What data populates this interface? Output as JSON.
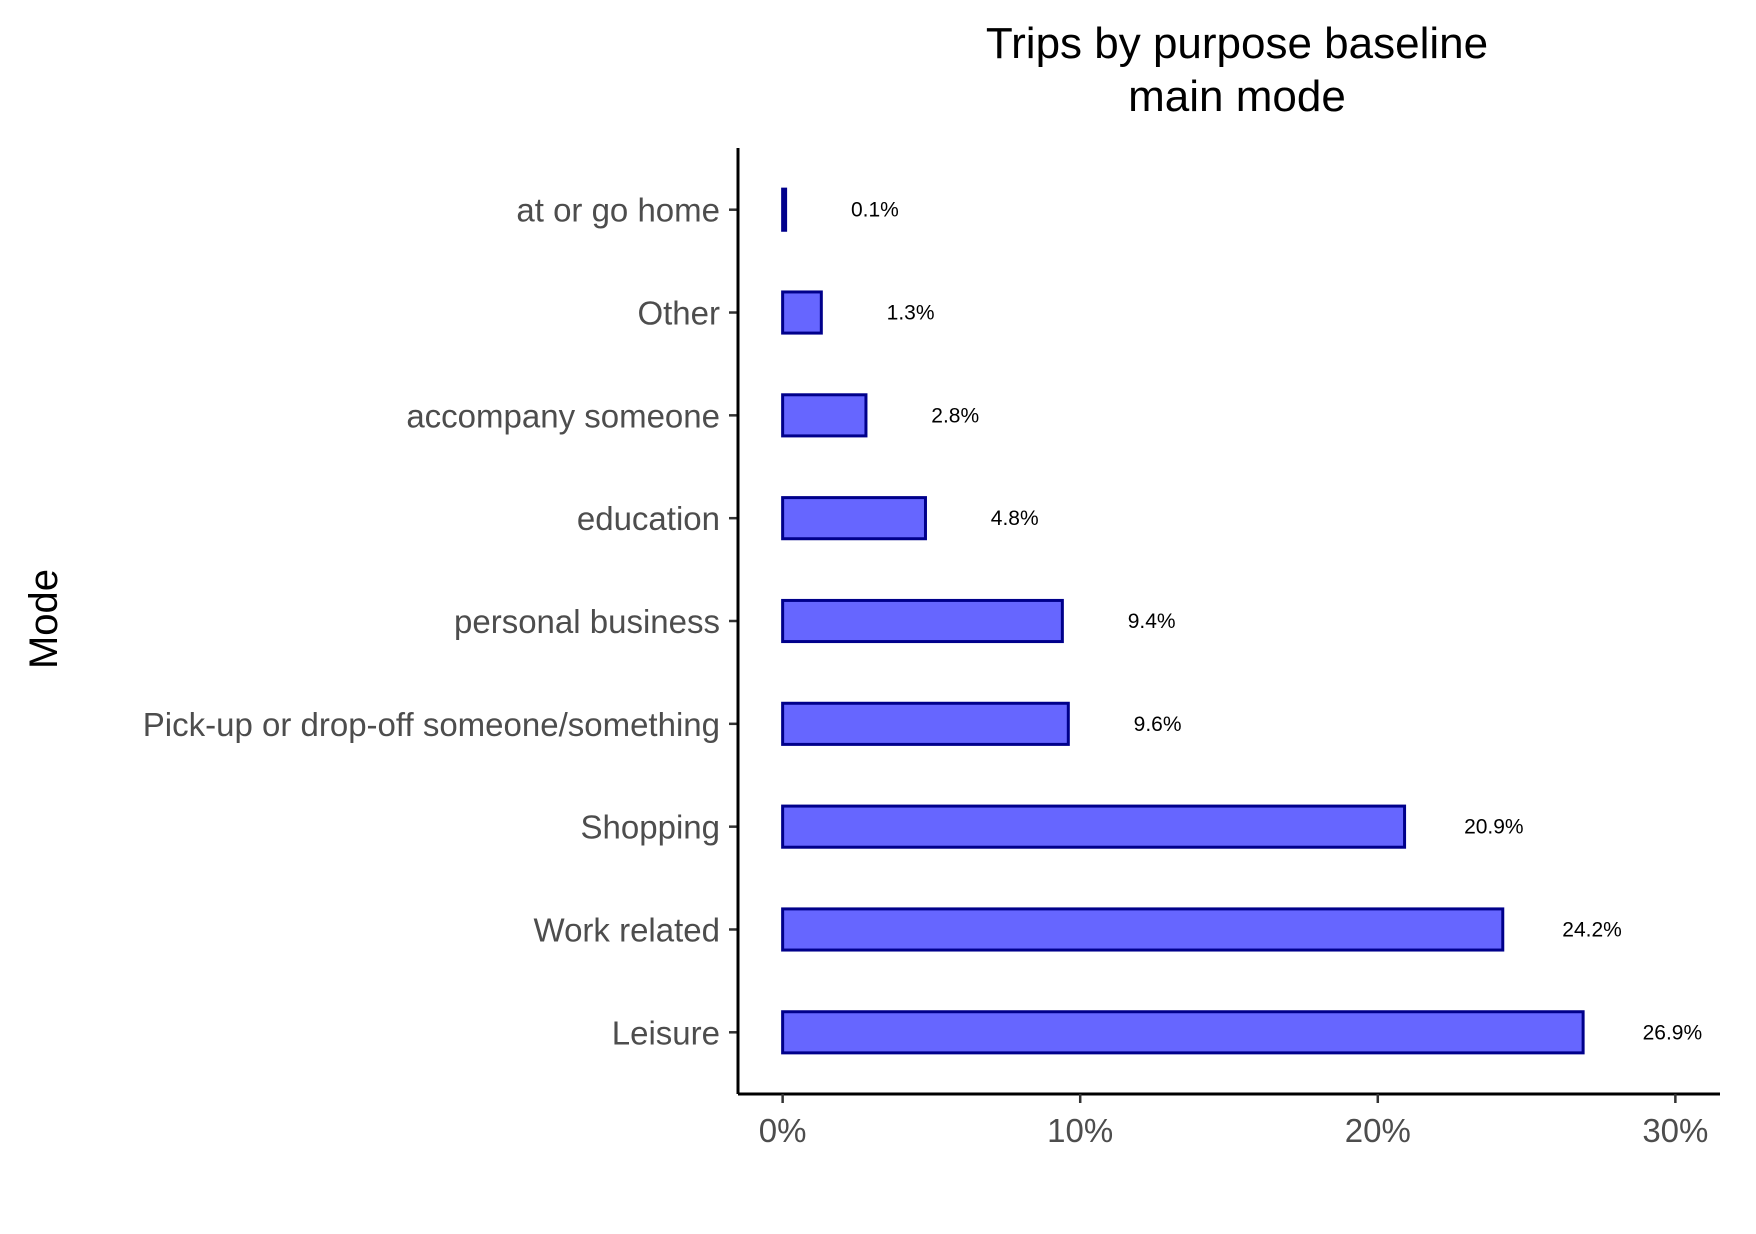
{
  "chart_data": {
    "type": "bar",
    "orientation": "horizontal",
    "title_lines": [
      "Trips by purpose baseline",
      "main mode"
    ],
    "xlabel": "",
    "ylabel": "Mode",
    "categories": [
      "at or go home",
      "Other",
      "accompany someone",
      "education",
      "personal business",
      "Pick-up or drop-off someone/something",
      "Shopping",
      "Work related",
      "Leisure"
    ],
    "values": [
      0.1,
      1.3,
      2.8,
      4.8,
      9.4,
      9.6,
      20.9,
      24.2,
      26.9
    ],
    "data_labels": [
      "0.1%",
      "1.3%",
      "2.8%",
      "4.8%",
      "9.4%",
      "9.6%",
      "20.9%",
      "24.2%",
      "26.9%"
    ],
    "x_ticks": [
      0,
      10,
      20,
      30
    ],
    "x_tick_labels": [
      "0%",
      "10%",
      "20%",
      "30%"
    ],
    "xlim": [
      -1.5,
      31.5
    ],
    "grid": false,
    "legend": "none",
    "colors": {
      "bar_fill": "#6666ff",
      "bar_stroke": "#00008b"
    }
  }
}
